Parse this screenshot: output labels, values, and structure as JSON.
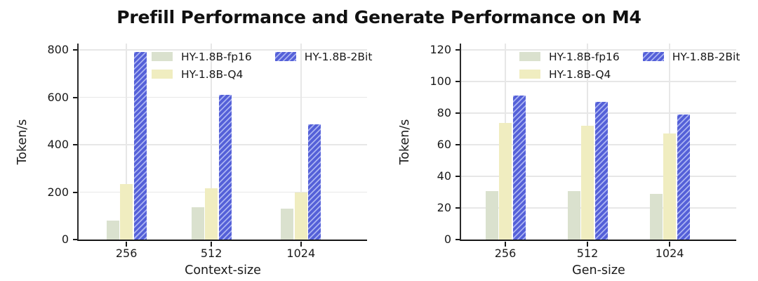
{
  "title": "Prefill Performance and Generate Performance on M4",
  "colors": {
    "fp16": "#dae1ce",
    "q4": "#f0edc0",
    "twobit_base": "#5460d8",
    "twobit_hatch": "#aab3f2",
    "grid": "#e7e7e7",
    "axis": "#1a1a1a"
  },
  "chart_data": [
    {
      "type": "bar",
      "name": "prefill",
      "xlabel": "Context-size",
      "ylabel": "Token/s",
      "categories": [
        "256",
        "512",
        "1024"
      ],
      "series": [
        {
          "name": "HY-1.8B-fp16",
          "key": "fp16",
          "hatch": false,
          "values": [
            80,
            135,
            130
          ]
        },
        {
          "name": "HY-1.8B-Q4",
          "key": "q4",
          "hatch": false,
          "values": [
            235,
            215,
            200
          ]
        },
        {
          "name": "HY-1.8B-2Bit",
          "key": "twobit",
          "hatch": true,
          "values": [
            790,
            610,
            485
          ]
        }
      ],
      "ylim": [
        0,
        800
      ],
      "yticks": [
        0,
        200,
        400,
        600,
        800
      ],
      "grid": true,
      "legend_position": "upper center"
    },
    {
      "type": "bar",
      "name": "generate",
      "xlabel": "Gen-size",
      "ylabel": "Token/s",
      "categories": [
        "256",
        "512",
        "1024"
      ],
      "series": [
        {
          "name": "HY-1.8B-fp16",
          "key": "fp16",
          "hatch": false,
          "values": [
            30.5,
            30.5,
            29
          ]
        },
        {
          "name": "HY-1.8B-Q4",
          "key": "q4",
          "hatch": false,
          "values": [
            74,
            72,
            67
          ]
        },
        {
          "name": "HY-1.8B-2Bit",
          "key": "twobit",
          "hatch": true,
          "values": [
            91,
            87,
            79
          ]
        }
      ],
      "ylim": [
        0,
        120
      ],
      "yticks": [
        0,
        20,
        40,
        60,
        80,
        100,
        120
      ],
      "grid": true,
      "legend_position": "upper center"
    }
  ]
}
